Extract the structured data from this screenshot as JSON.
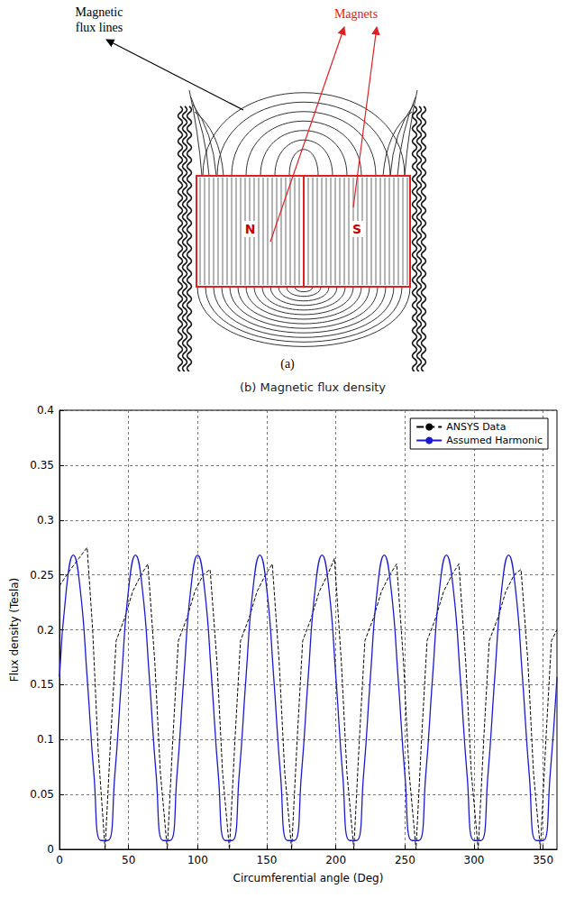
{
  "diagram": {
    "flux_label": "Magnetic flux lines",
    "magnets_label": "Magnets",
    "poles": [
      "N",
      "S"
    ],
    "caption": "(a)"
  },
  "chart_data": {
    "type": "line",
    "title": "(b) Magnetic flux density",
    "x_label": "Circumferential angle (Deg)",
    "y_label": "Flux density (Tesla)",
    "xlim": [
      0,
      360
    ],
    "xticks": [
      0,
      50,
      100,
      150,
      200,
      250,
      300,
      350
    ],
    "ylim": [
      0,
      0.4
    ],
    "yticks": [
      0,
      0.05,
      0.1,
      0.15,
      0.2,
      0.25,
      0.3,
      0.35,
      0.4
    ],
    "grid": true,
    "legend": "top-right",
    "series": [
      {
        "name": "ANSYS Data",
        "color": "#000000",
        "line_style": "dashed",
        "x": [
          0,
          8,
          14,
          20,
          24,
          28,
          33,
          37,
          41,
          47,
          53,
          59,
          64,
          69,
          73,
          78,
          82,
          86,
          92,
          98,
          104,
          109,
          114,
          118,
          123,
          127,
          131,
          137,
          143,
          149,
          154,
          159,
          163,
          168,
          172,
          176,
          182,
          188,
          194,
          199,
          204,
          208,
          213,
          217,
          221,
          227,
          233,
          239,
          244,
          249,
          253,
          258,
          262,
          266,
          272,
          278,
          284,
          289,
          294,
          298,
          303,
          307,
          311,
          317,
          323,
          329,
          334,
          339,
          343,
          348,
          352,
          356,
          360
        ],
        "values": [
          0.24,
          0.255,
          0.265,
          0.275,
          0.2,
          0.09,
          0,
          0.1,
          0.19,
          0.21,
          0.235,
          0.25,
          0.26,
          0.17,
          0.07,
          0,
          0.1,
          0.19,
          0.21,
          0.235,
          0.25,
          0.255,
          0.17,
          0.07,
          0,
          0.1,
          0.19,
          0.21,
          0.235,
          0.25,
          0.26,
          0.17,
          0.07,
          0,
          0.1,
          0.19,
          0.21,
          0.235,
          0.25,
          0.265,
          0.17,
          0.07,
          0,
          0.1,
          0.19,
          0.21,
          0.235,
          0.25,
          0.26,
          0.17,
          0.07,
          0,
          0.1,
          0.19,
          0.21,
          0.235,
          0.25,
          0.26,
          0.17,
          0.07,
          0,
          0.1,
          0.19,
          0.21,
          0.235,
          0.25,
          0.255,
          0.17,
          0.07,
          0,
          0.1,
          0.19,
          0.2
        ]
      },
      {
        "name": "Assumed Harmonic",
        "color": "#1a1ad0",
        "line_style": "solid",
        "x": [
          0,
          5,
          10,
          15,
          20,
          25,
          30,
          35,
          40,
          45,
          50,
          55,
          60,
          65,
          70,
          75,
          80,
          85,
          90,
          95,
          100,
          105,
          110,
          115,
          120,
          125,
          130,
          135,
          140,
          145,
          150,
          155,
          160,
          165,
          170,
          175,
          180,
          185,
          190,
          195,
          200,
          205,
          210,
          215,
          220,
          225,
          230,
          235,
          240,
          245,
          250,
          255,
          260,
          265,
          270,
          275,
          280,
          285,
          290,
          295,
          300,
          305,
          310,
          315,
          320,
          325,
          330,
          335,
          340,
          345,
          350,
          355,
          360
        ],
        "values": [
          0.157,
          0.237,
          0.268,
          0.237,
          0.157,
          0.067,
          0.008,
          0.008,
          0.067,
          0.157,
          0.237,
          0.268,
          0.237,
          0.157,
          0.067,
          0.008,
          0.008,
          0.067,
          0.157,
          0.237,
          0.268,
          0.237,
          0.157,
          0.067,
          0.008,
          0.008,
          0.067,
          0.157,
          0.237,
          0.268,
          0.237,
          0.157,
          0.067,
          0.008,
          0.008,
          0.067,
          0.157,
          0.237,
          0.268,
          0.237,
          0.157,
          0.067,
          0.008,
          0.008,
          0.067,
          0.157,
          0.237,
          0.268,
          0.237,
          0.157,
          0.067,
          0.008,
          0.008,
          0.067,
          0.157,
          0.237,
          0.268,
          0.237,
          0.157,
          0.067,
          0.008,
          0.008,
          0.067,
          0.157,
          0.237,
          0.268,
          0.237,
          0.157,
          0.067,
          0.008,
          0.008,
          0.067,
          0.157
        ]
      }
    ]
  }
}
